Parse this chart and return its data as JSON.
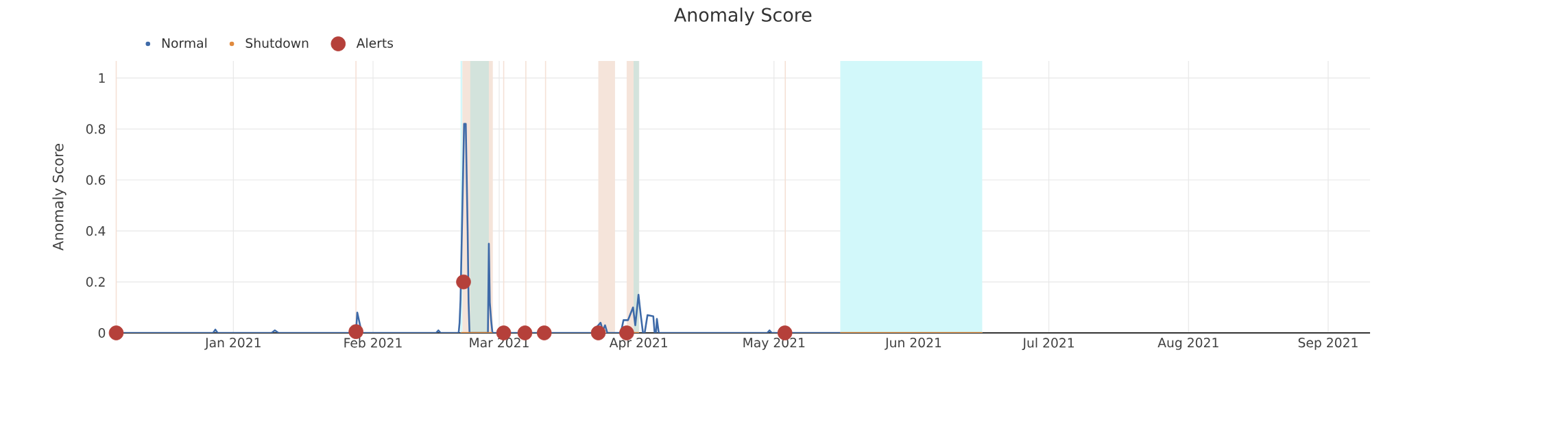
{
  "chart_data": {
    "type": "line",
    "title": "Anomaly Score",
    "ylabel": "Anomaly Score",
    "xlim": [
      "2020-12-06T00:00",
      "2021-09-10T07:00"
    ],
    "ylim": [
      0,
      1.067
    ],
    "xticks": [
      {
        "value": "2021-01-01",
        "label": "Jan 2021"
      },
      {
        "value": "2021-02-01",
        "label": "Feb 2021"
      },
      {
        "value": "2021-03-01",
        "label": "Mar 2021"
      },
      {
        "value": "2021-04-01",
        "label": "Apr 2021"
      },
      {
        "value": "2021-05-01",
        "label": "May 2021"
      },
      {
        "value": "2021-06-01",
        "label": "Jun 2021"
      },
      {
        "value": "2021-07-01",
        "label": "Jul 2021"
      },
      {
        "value": "2021-08-01",
        "label": "Aug 2021"
      },
      {
        "value": "2021-09-01",
        "label": "Sep 2021"
      }
    ],
    "yticks": [
      0,
      0.2,
      0.4,
      0.6,
      0.8,
      1
    ],
    "grid": true,
    "legend": "top left",
    "bands": [
      {
        "axis": "x",
        "from": "2021-02-20T10:00",
        "to": "2021-02-20T20:00",
        "color": "#d2f8fa"
      },
      {
        "axis": "x",
        "from": "2021-02-20T20:00",
        "to": "2021-02-27T14:00",
        "color": "#f5e4da"
      },
      {
        "axis": "x",
        "from": "2021-02-22T14:00",
        "to": "2021-02-26T17:00",
        "color": "#d3e3dc"
      },
      {
        "axis": "x",
        "from": "2021-03-23T00:00",
        "to": "2021-03-26T17:00",
        "color": "#f5e4da"
      },
      {
        "axis": "x",
        "from": "2021-03-29T07:00",
        "to": "2021-03-30T20:00",
        "color": "#f5e4da"
      },
      {
        "axis": "x",
        "from": "2021-03-30T20:00",
        "to": "2021-04-01T00:00",
        "color": "#d3e3dc"
      },
      {
        "axis": "x",
        "from": "2021-05-15T17:00",
        "to": "2021-06-16T05:00",
        "color": "#d2f8fa"
      }
    ],
    "ref_lines": [
      {
        "axis": "x",
        "value": "2020-12-06T00:00",
        "color": "#f5e1d6"
      },
      {
        "axis": "x",
        "value": "2021-01-28T05:00",
        "color": "#f5e1d6"
      },
      {
        "axis": "x",
        "value": "2021-03-02T00:00",
        "color": "#f5e1d6"
      },
      {
        "axis": "x",
        "value": "2021-03-06T22:00",
        "color": "#f5e1d6"
      },
      {
        "axis": "x",
        "value": "2021-03-11T07:00",
        "color": "#f5e1d6"
      },
      {
        "axis": "x",
        "value": "2021-05-03T12:00",
        "color": "#f5e1d6"
      }
    ],
    "series": [
      {
        "name": "Normal",
        "color": "#3e6aa8",
        "x": [
          "2020-12-06T00:00",
          "2020-12-27T12:00",
          "2020-12-28T00:00",
          "2020-12-28T12:00",
          "2021-01-09T12:00",
          "2021-01-10T05:00",
          "2021-01-11T00:00",
          "2021-01-28T05:00",
          "2021-01-28T12:00",
          "2021-01-29T12:00",
          "2021-02-15T00:00",
          "2021-02-15T12:00",
          "2021-02-16T00:00",
          "2021-02-20T00:00",
          "2021-02-20T05:00",
          "2021-02-20T10:00",
          "2021-02-21T05:00",
          "2021-02-21T14:00",
          "2021-02-22T00:00",
          "2021-02-22T05:00",
          "2021-02-22T10:00",
          "2021-02-26T12:00",
          "2021-02-26T17:00",
          "2021-02-26T22:00",
          "2021-02-27T05:00",
          "2021-02-27T12:00",
          "2021-03-21T12:00",
          "2021-03-23T12:00",
          "2021-03-24T00:00",
          "2021-03-24T12:00",
          "2021-03-25T00:00",
          "2021-03-28T00:00",
          "2021-03-28T14:00",
          "2021-03-29T14:00",
          "2021-03-30T17:00",
          "2021-03-31T05:00",
          "2021-03-31T22:00",
          "2021-04-01T10:00",
          "2021-04-01T22:00",
          "2021-04-02T07:00",
          "2021-04-02T22:00",
          "2021-04-04T05:00",
          "2021-04-04T12:00",
          "2021-04-04T19:00",
          "2021-04-05T00:00",
          "2021-04-05T10:00",
          "2021-04-29T12:00",
          "2021-04-30T00:00",
          "2021-04-30T12:00",
          "2021-05-15T17:00"
        ],
        "values": [
          0,
          0,
          0.013,
          0,
          0,
          0.01,
          0,
          0,
          0.08,
          0,
          0,
          0.01,
          0,
          0,
          0.04,
          0.13,
          0.82,
          0.82,
          0.4,
          0.12,
          0,
          0,
          0.35,
          0.12,
          0.05,
          0,
          0,
          0.04,
          0.01,
          0.03,
          0,
          0,
          0.05,
          0.05,
          0.1,
          0.03,
          0.15,
          0.07,
          0,
          0,
          0.07,
          0.065,
          0,
          0,
          0.055,
          0,
          0,
          0.01,
          0,
          0
        ]
      },
      {
        "name": "Shutdown",
        "color": "#e08a3e",
        "x": [
          "2021-02-20T12:00",
          "2021-02-27T12:00",
          "2021-03-01T00:00",
          "2021-03-30T20:00",
          "2021-04-01T00:00",
          "2021-04-02T00:00",
          "2021-05-15T17:00",
          "2021-06-16T05:00"
        ],
        "values": [
          0,
          0,
          null,
          0,
          0,
          null,
          0,
          0
        ]
      },
      {
        "name": "Alerts",
        "type": "scatter",
        "marker": "circle",
        "color": "#b5403a",
        "x": [
          "2020-12-06T00:00",
          "2021-01-28T05:00",
          "2021-02-21T02:00",
          "2021-03-02T00:00",
          "2021-03-06T17:00",
          "2021-03-11T00:00",
          "2021-03-23T00:00",
          "2021-03-29T07:00",
          "2021-05-03T10:00"
        ],
        "values": [
          0,
          0.005,
          0.2,
          0,
          0,
          0,
          0,
          0,
          0
        ]
      }
    ]
  }
}
